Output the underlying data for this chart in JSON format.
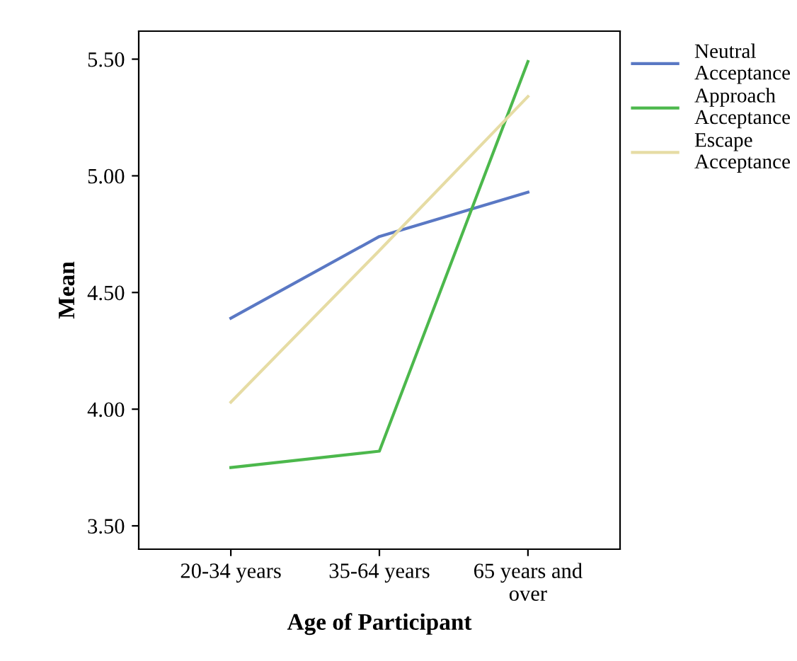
{
  "chart_data": {
    "type": "line",
    "xlabel": "Age of Participant",
    "ylabel": "Mean",
    "categories": [
      "20-34 years",
      "35-64 years",
      "65 years and\nover"
    ],
    "series": [
      {
        "name": "Neutral\nAcceptance",
        "color": "#5a78c4",
        "values": [
          4.39,
          4.74,
          4.93
        ]
      },
      {
        "name": "Approach\nAcceptance",
        "color": "#4cb84c",
        "values": [
          3.75,
          3.82,
          5.49
        ]
      },
      {
        "name": "Escape\nAcceptance",
        "color": "#e6dca4",
        "values": [
          4.03,
          4.68,
          5.34
        ]
      }
    ],
    "ylim": [
      3.4,
      5.62
    ],
    "yticks": [
      {
        "value": 3.5,
        "label": "3.50"
      },
      {
        "value": 4.0,
        "label": "4.00"
      },
      {
        "value": 4.5,
        "label": "4.50"
      },
      {
        "value": 5.0,
        "label": "5.00"
      },
      {
        "value": 5.5,
        "label": "5.50"
      }
    ],
    "grid": false,
    "legend": "top right",
    "marker": "none",
    "line_style": "solid"
  }
}
